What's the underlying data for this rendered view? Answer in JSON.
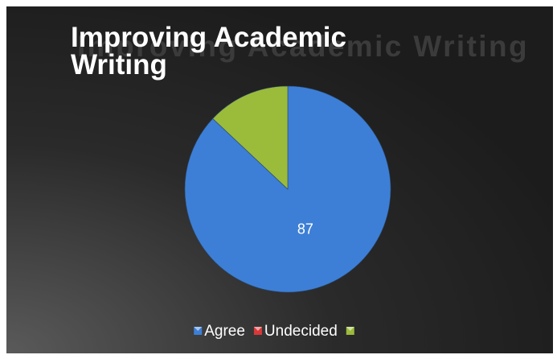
{
  "chart_data": {
    "type": "pie",
    "title": "Improving Academic Writing",
    "categories": [
      "Agree",
      "Undecided",
      null
    ],
    "values": [
      87,
      0,
      13
    ],
    "value_labels": [
      "87",
      null,
      null
    ],
    "colors": [
      "#3d7fd6",
      "#d9383a",
      "#9bbb3b"
    ],
    "legend": "bottom"
  }
}
